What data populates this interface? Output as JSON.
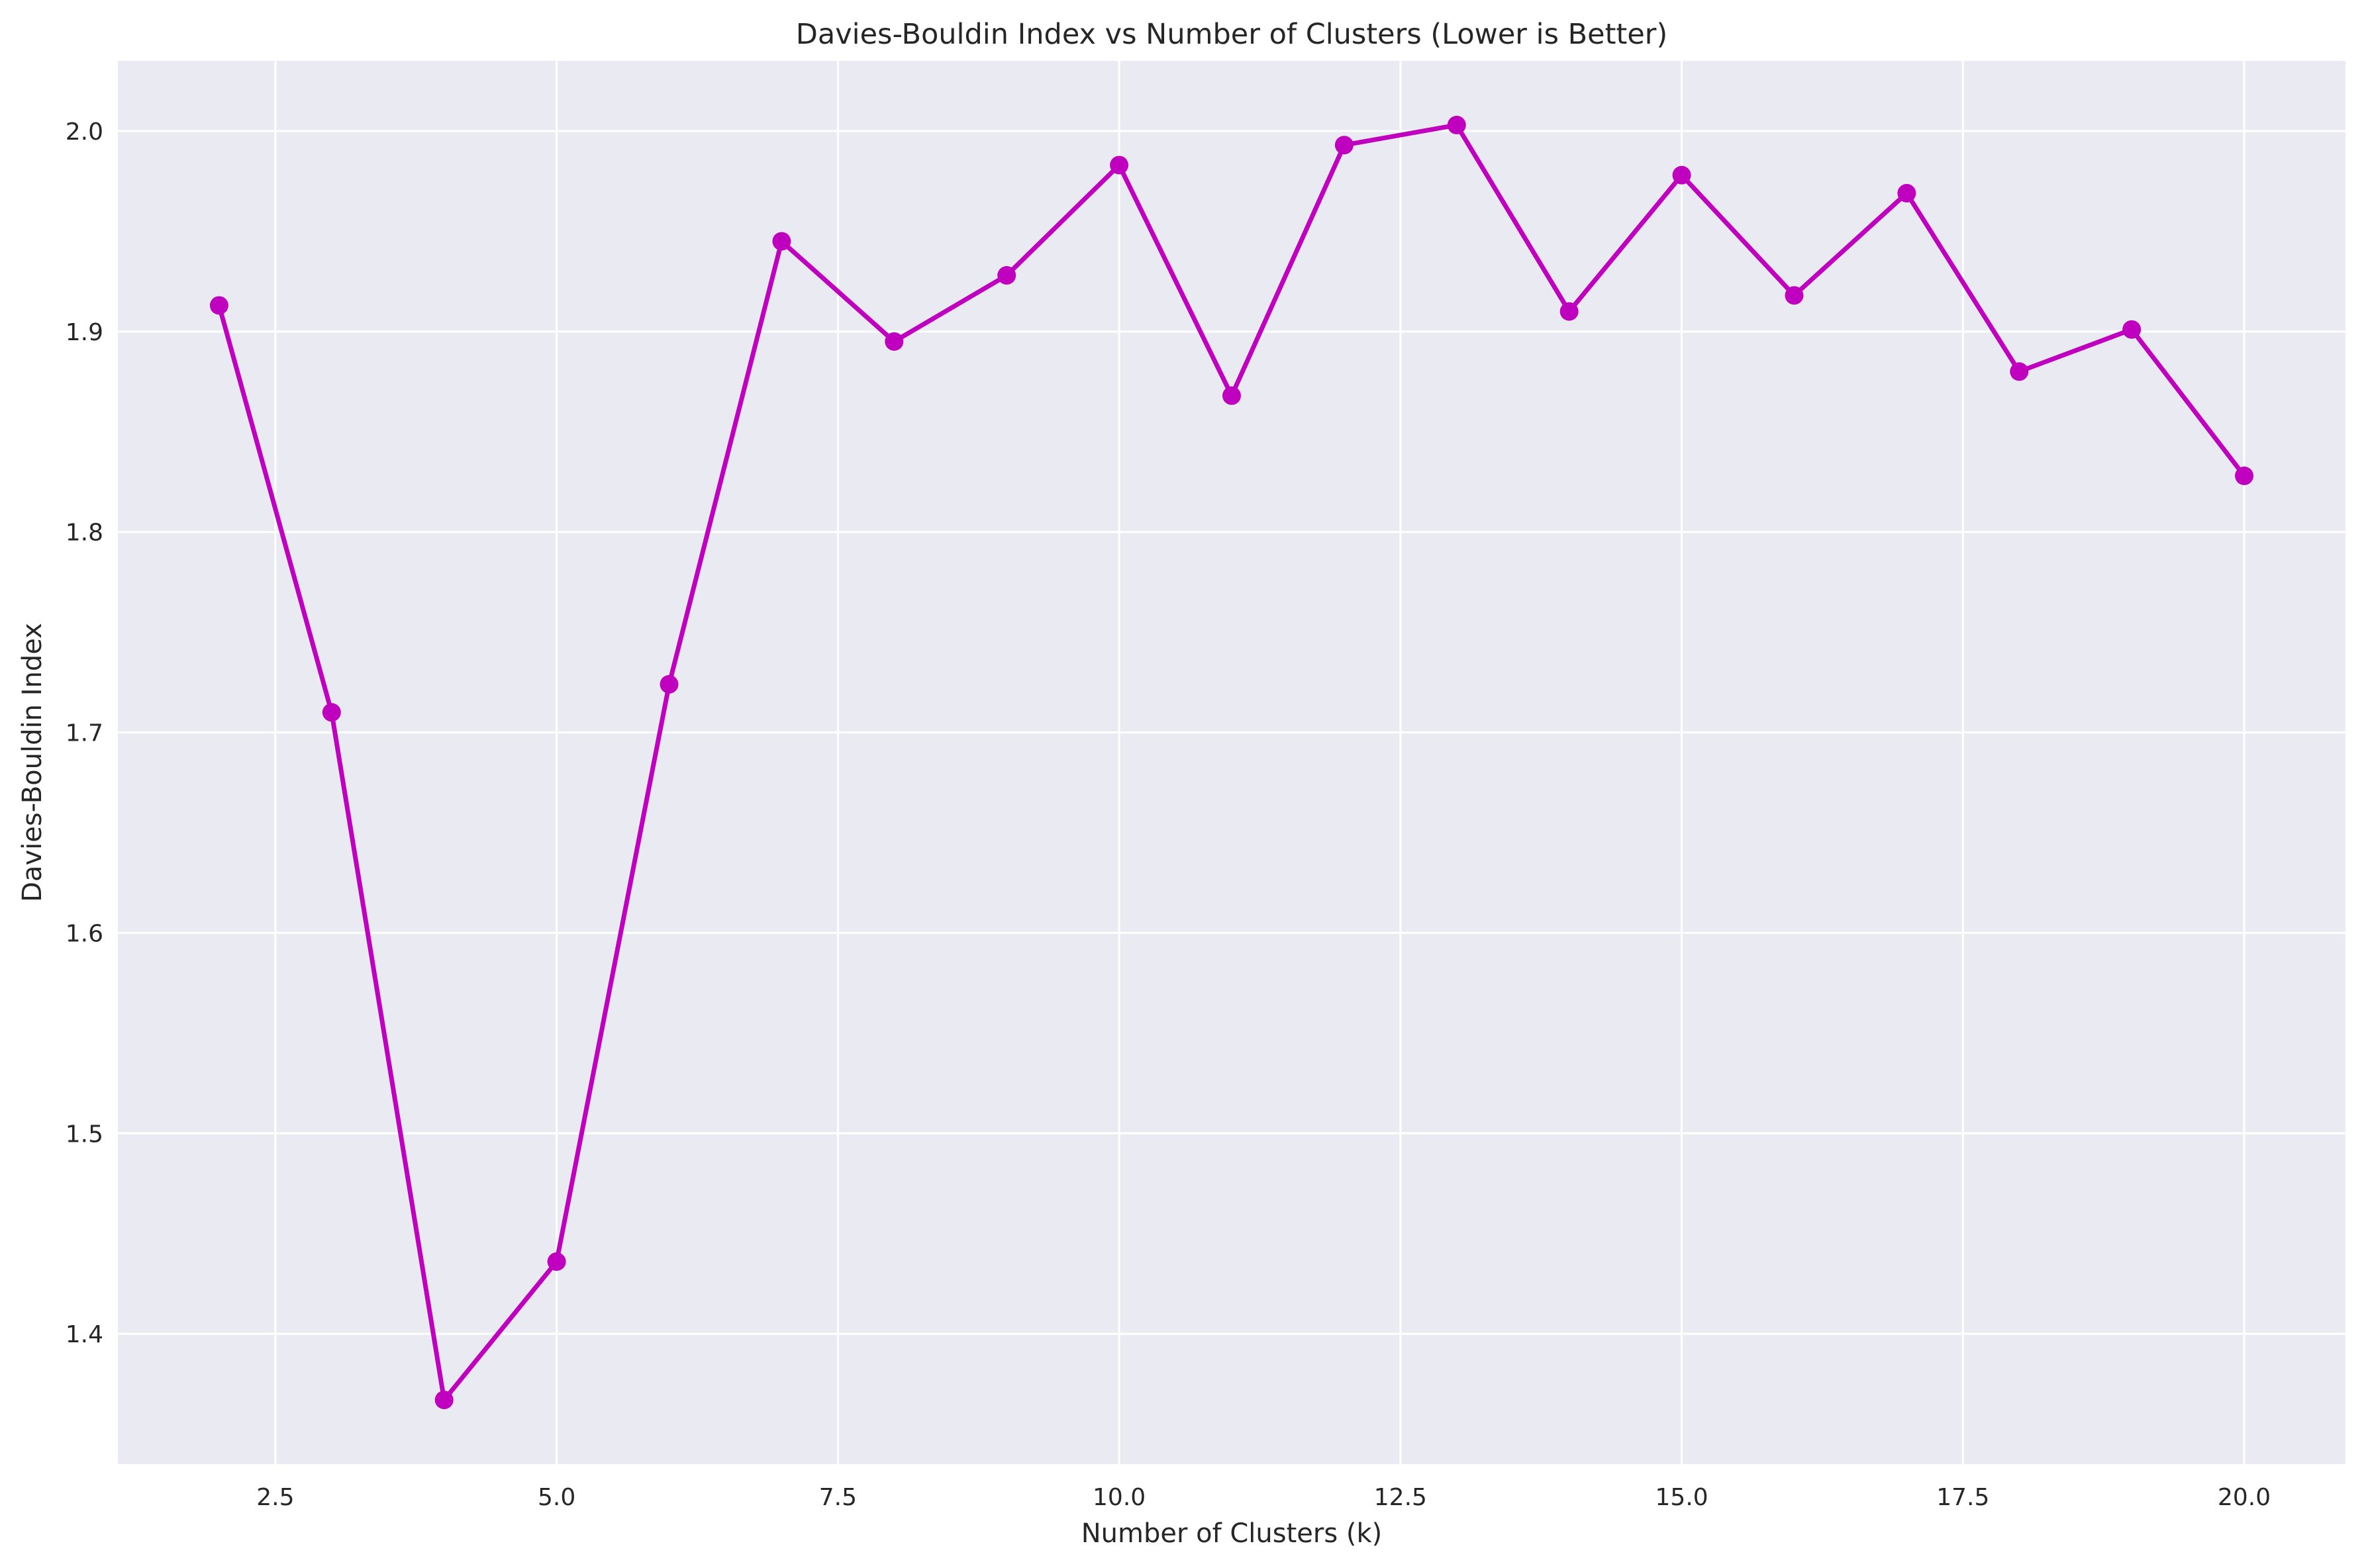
{
  "chart_data": {
    "type": "line",
    "title": "Davies-Bouldin Index vs Number of Clusters (Lower is Better)",
    "xlabel": "Number of Clusters (k)",
    "ylabel": "Davies-Bouldin Index",
    "xlim": [
      1.1,
      20.9
    ],
    "ylim": [
      1.335,
      2.035
    ],
    "xticks": [
      2.5,
      5.0,
      7.5,
      10.0,
      12.5,
      15.0,
      17.5,
      20.0
    ],
    "xtick_labels": [
      "2.5",
      "5.0",
      "7.5",
      "10.0",
      "12.5",
      "15.0",
      "17.5",
      "20.0"
    ],
    "yticks": [
      1.4,
      1.5,
      1.6,
      1.7,
      1.8,
      1.9,
      2.0
    ],
    "ytick_labels": [
      "1.4",
      "1.5",
      "1.6",
      "1.7",
      "1.8",
      "1.9",
      "2.0"
    ],
    "grid": true,
    "legend": false,
    "series": [
      {
        "color": "#bf00bf",
        "marker": "circle",
        "x": [
          2,
          3,
          4,
          5,
          6,
          7,
          8,
          9,
          10,
          11,
          12,
          13,
          14,
          15,
          16,
          17,
          18,
          19,
          20
        ],
        "y": [
          1.913,
          1.71,
          1.367,
          1.436,
          1.724,
          1.945,
          1.895,
          1.928,
          1.983,
          1.868,
          1.993,
          2.003,
          1.91,
          1.978,
          1.918,
          1.969,
          1.88,
          1.901,
          1.828
        ]
      }
    ],
    "colors": {
      "plot_background": "#eaeaf2",
      "grid": "#ffffff",
      "line": "#bf00bf"
    }
  }
}
